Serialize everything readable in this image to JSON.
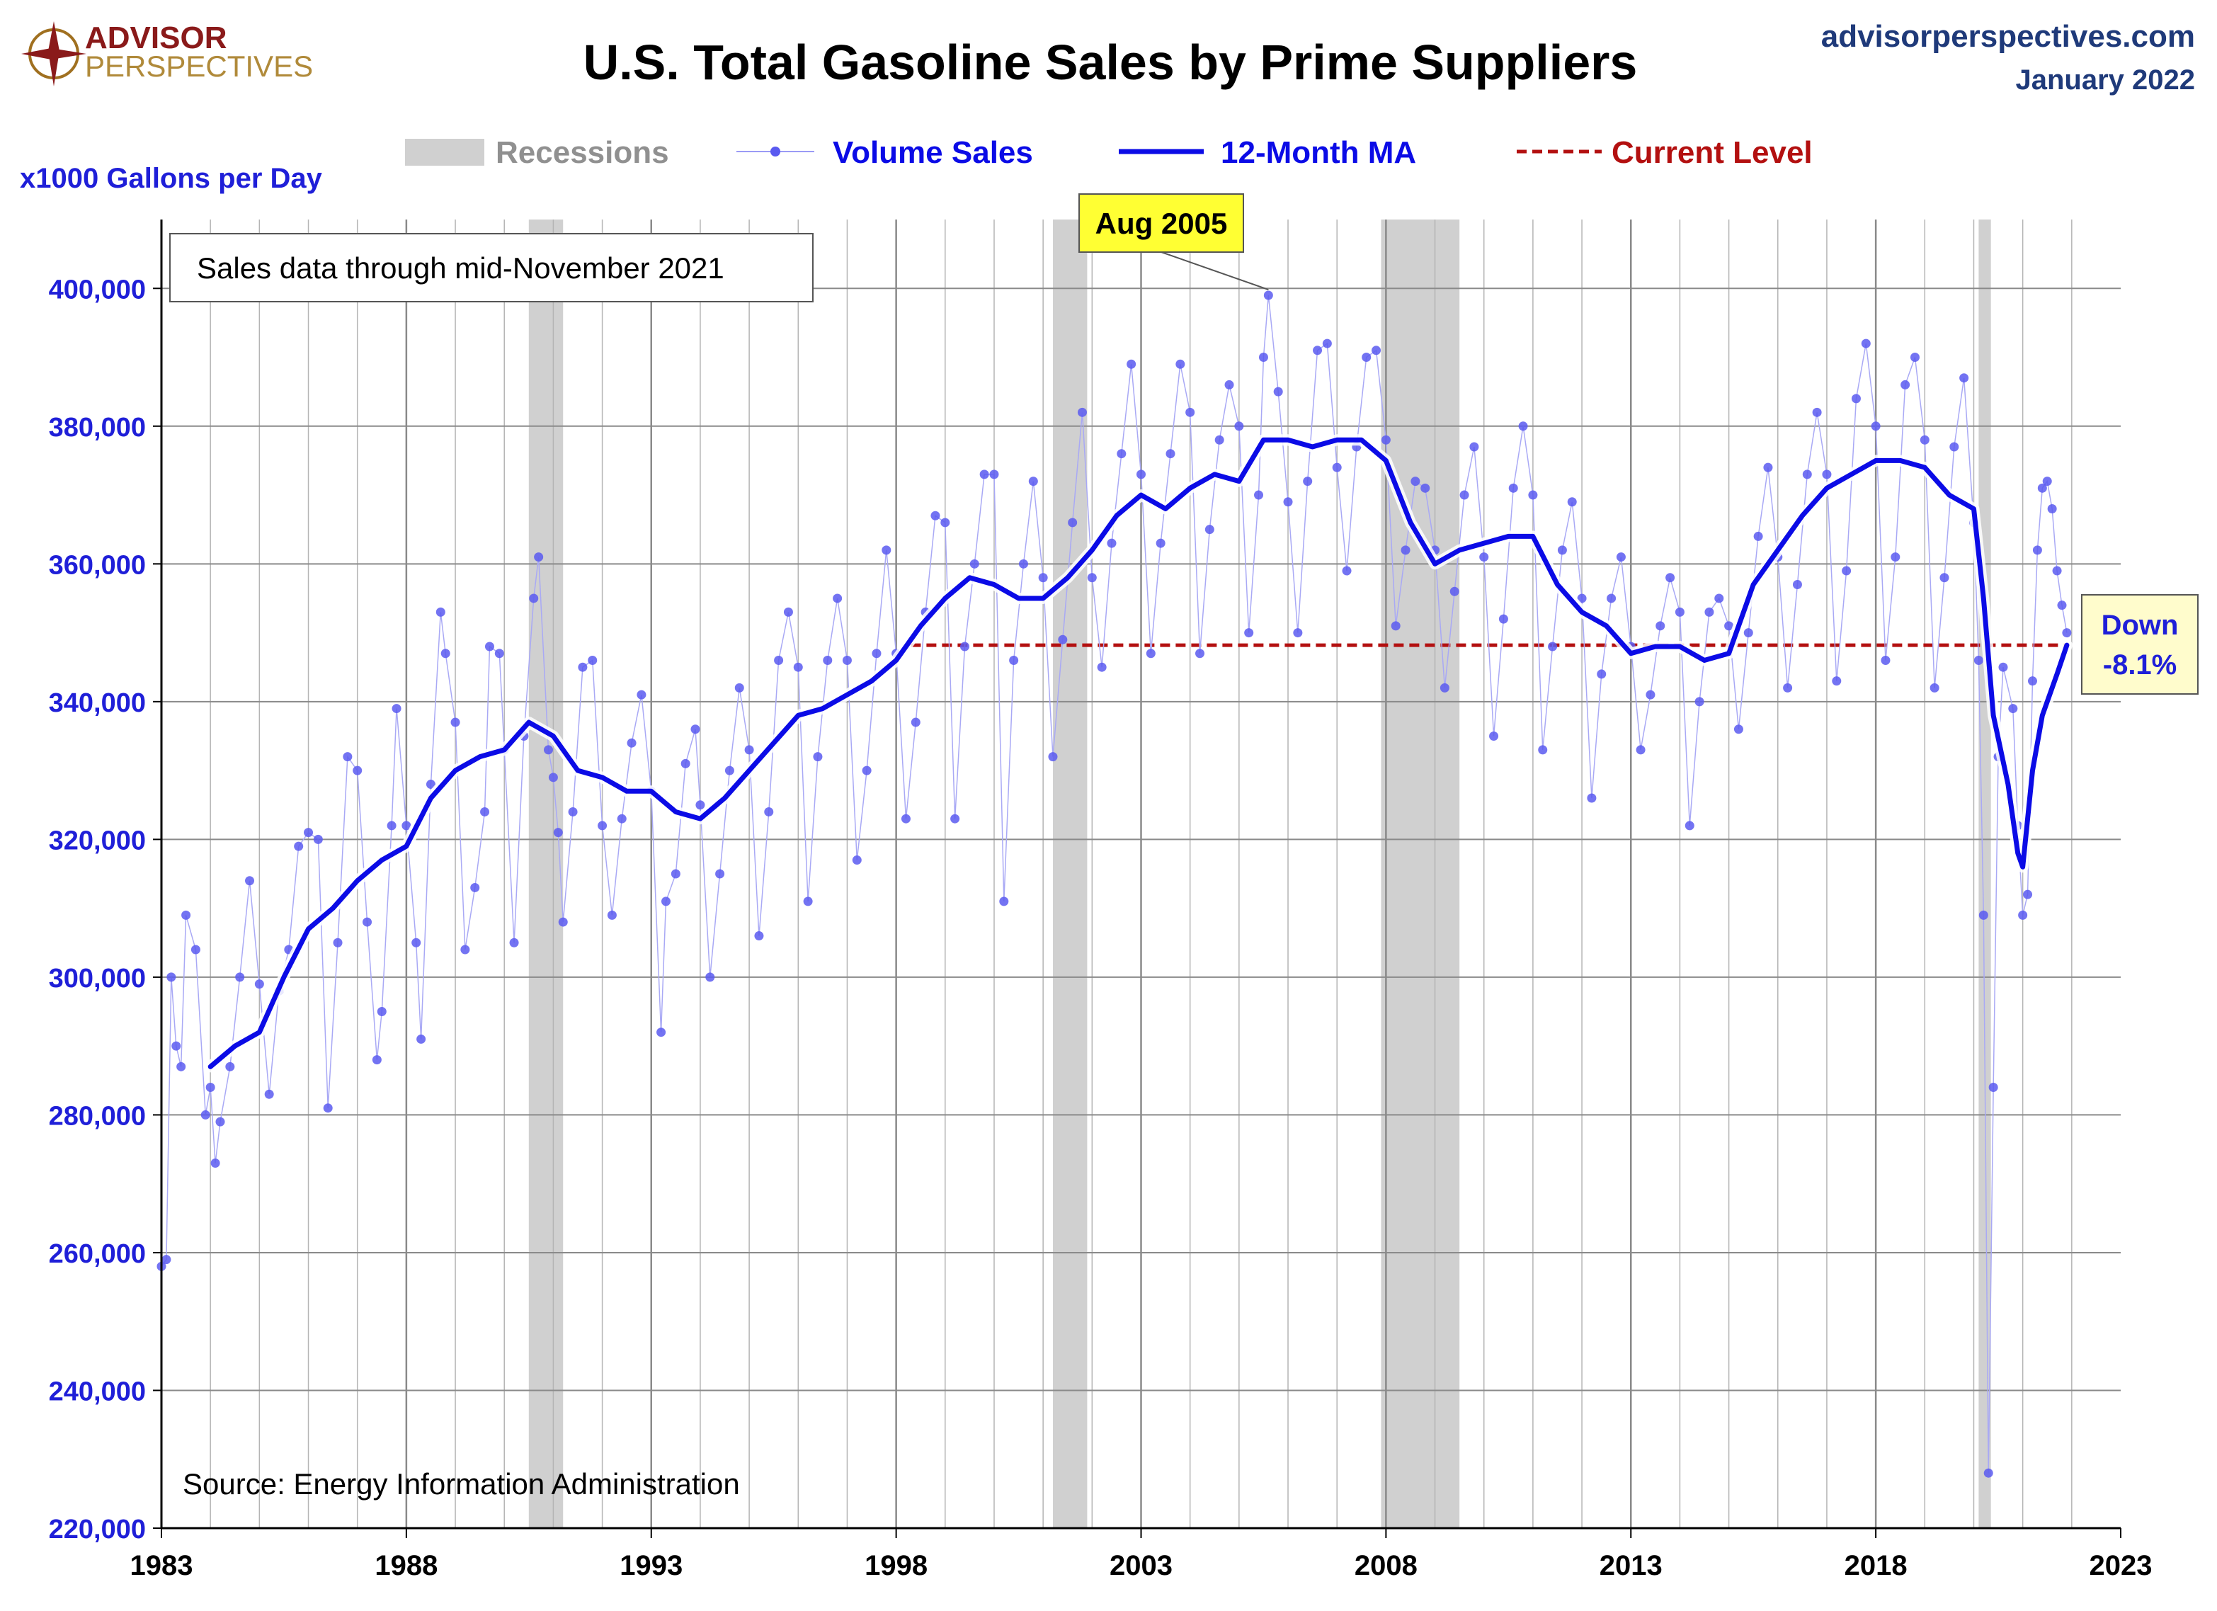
{
  "branding": {
    "logo_line1": "ADVISOR",
    "logo_line2": "PERSPECTIVES",
    "site": "advisorperspectives.com",
    "date": "January 2022"
  },
  "legend": {
    "recessions": "Recessions",
    "volume": "Volume Sales",
    "ma": "12-Month MA",
    "current": "Current Level"
  },
  "annotations": {
    "sales_note": "Sales data through mid-November 2021",
    "source": "Source: Energy Information Administration",
    "peak_label": "Aug 2005",
    "down_line1": "Down",
    "down_line2": "-8.1%"
  },
  "colors": {
    "volume": "#5a5af0",
    "ma": "#0b0be6",
    "current": "#b31010",
    "recession": "#d0d0d0",
    "peak_box": "#ffff33",
    "down_box": "#fffccc",
    "tick": "#1f1fd8"
  },
  "chart_data": {
    "type": "line",
    "title": "U.S. Total Gasoline Sales by Prime Suppliers",
    "ylabel": "x1000 Gallons per Day",
    "xlim": [
      1983,
      2023
    ],
    "ylim": [
      220000,
      410000
    ],
    "x_ticks": [
      1983,
      1988,
      1993,
      1998,
      2003,
      2008,
      2013,
      2018,
      2023
    ],
    "y_ticks": [
      220000,
      240000,
      260000,
      280000,
      300000,
      320000,
      340000,
      360000,
      380000,
      400000
    ],
    "y_tick_labels": [
      "220,000",
      "240,000",
      "260,000",
      "280,000",
      "300,000",
      "320,000",
      "340,000",
      "360,000",
      "380,000",
      "400,000"
    ],
    "x_tick_labels": [
      "1983",
      "1988",
      "1993",
      "1998",
      "2003",
      "2008",
      "2013",
      "2018",
      "2023"
    ],
    "grid": "on, vertical line each year",
    "recessions": [
      [
        1990.5,
        1991.2
      ],
      [
        2001.2,
        2001.9
      ],
      [
        2007.9,
        2009.5
      ],
      [
        2020.1,
        2020.35
      ]
    ],
    "current_level": {
      "value": 348200,
      "x_start": 1998.3,
      "x_end": 2021.9
    },
    "peak": {
      "x": 2005.6,
      "y": 399200
    },
    "ma_anchor_points": [
      [
        1984.0,
        287000
      ],
      [
        1984.5,
        290000
      ],
      [
        1985.0,
        292000
      ],
      [
        1985.5,
        300000
      ],
      [
        1986.0,
        307000
      ],
      [
        1986.5,
        310000
      ],
      [
        1987.0,
        314000
      ],
      [
        1987.5,
        317000
      ],
      [
        1988.0,
        319000
      ],
      [
        1988.5,
        326000
      ],
      [
        1989.0,
        330000
      ],
      [
        1989.5,
        332000
      ],
      [
        1990.0,
        333000
      ],
      [
        1990.5,
        337000
      ],
      [
        1991.0,
        335000
      ],
      [
        1991.5,
        330000
      ],
      [
        1992.0,
        329000
      ],
      [
        1992.5,
        327000
      ],
      [
        1993.0,
        327000
      ],
      [
        1993.5,
        324000
      ],
      [
        1994.0,
        323000
      ],
      [
        1994.5,
        326000
      ],
      [
        1995.0,
        330000
      ],
      [
        1995.5,
        334000
      ],
      [
        1996.0,
        338000
      ],
      [
        1996.5,
        339000
      ],
      [
        1997.0,
        341000
      ],
      [
        1997.5,
        343000
      ],
      [
        1998.0,
        346000
      ],
      [
        1998.5,
        351000
      ],
      [
        1999.0,
        355000
      ],
      [
        1999.5,
        358000
      ],
      [
        2000.0,
        357000
      ],
      [
        2000.5,
        355000
      ],
      [
        2001.0,
        355000
      ],
      [
        2001.5,
        358000
      ],
      [
        2002.0,
        362000
      ],
      [
        2002.5,
        367000
      ],
      [
        2003.0,
        370000
      ],
      [
        2003.5,
        368000
      ],
      [
        2004.0,
        371000
      ],
      [
        2004.5,
        373000
      ],
      [
        2005.0,
        372000
      ],
      [
        2005.5,
        378000
      ],
      [
        2006.0,
        378000
      ],
      [
        2006.5,
        377000
      ],
      [
        2007.0,
        378000
      ],
      [
        2007.5,
        378000
      ],
      [
        2008.0,
        375000
      ],
      [
        2008.5,
        366000
      ],
      [
        2009.0,
        360000
      ],
      [
        2009.5,
        362000
      ],
      [
        2010.0,
        363000
      ],
      [
        2010.5,
        364000
      ],
      [
        2011.0,
        364000
      ],
      [
        2011.5,
        357000
      ],
      [
        2012.0,
        353000
      ],
      [
        2012.5,
        351000
      ],
      [
        2013.0,
        347000
      ],
      [
        2013.5,
        348000
      ],
      [
        2014.0,
        348000
      ],
      [
        2014.5,
        346000
      ],
      [
        2015.0,
        347000
      ],
      [
        2015.5,
        357000
      ],
      [
        2016.0,
        362000
      ],
      [
        2016.5,
        367000
      ],
      [
        2017.0,
        371000
      ],
      [
        2017.5,
        373000
      ],
      [
        2018.0,
        375000
      ],
      [
        2018.5,
        375000
      ],
      [
        2019.0,
        374000
      ],
      [
        2019.5,
        370000
      ],
      [
        2020.0,
        368000
      ],
      [
        2020.2,
        355000
      ],
      [
        2020.4,
        338000
      ],
      [
        2020.7,
        328000
      ],
      [
        2020.9,
        318000
      ],
      [
        2021.0,
        316000
      ],
      [
        2021.2,
        330000
      ],
      [
        2021.4,
        338000
      ],
      [
        2021.7,
        344000
      ],
      [
        2021.9,
        348200
      ]
    ],
    "volume_anchor_points": [
      [
        1983.0,
        258000
      ],
      [
        1983.1,
        259000
      ],
      [
        1983.2,
        300000
      ],
      [
        1983.3,
        290000
      ],
      [
        1983.4,
        287000
      ],
      [
        1983.5,
        309000
      ],
      [
        1983.7,
        304000
      ],
      [
        1983.9,
        280000
      ],
      [
        1984.0,
        284000
      ],
      [
        1984.1,
        273000
      ],
      [
        1984.2,
        279000
      ],
      [
        1984.4,
        287000
      ],
      [
        1984.6,
        300000
      ],
      [
        1984.8,
        314000
      ],
      [
        1985.0,
        299000
      ],
      [
        1985.2,
        283000
      ],
      [
        1985.4,
        298000
      ],
      [
        1985.6,
        304000
      ],
      [
        1985.8,
        319000
      ],
      [
        1986.0,
        321000
      ],
      [
        1986.2,
        320000
      ],
      [
        1986.4,
        281000
      ],
      [
        1986.6,
        305000
      ],
      [
        1986.8,
        332000
      ],
      [
        1987.0,
        330000
      ],
      [
        1987.2,
        308000
      ],
      [
        1987.4,
        288000
      ],
      [
        1987.5,
        295000
      ],
      [
        1987.7,
        322000
      ],
      [
        1987.8,
        339000
      ],
      [
        1988.0,
        322000
      ],
      [
        1988.2,
        305000
      ],
      [
        1988.3,
        291000
      ],
      [
        1988.5,
        328000
      ],
      [
        1988.7,
        353000
      ],
      [
        1988.8,
        347000
      ],
      [
        1989.0,
        337000
      ],
      [
        1989.2,
        304000
      ],
      [
        1989.4,
        313000
      ],
      [
        1989.6,
        324000
      ],
      [
        1989.7,
        348000
      ],
      [
        1989.9,
        347000
      ],
      [
        1990.0,
        333000
      ],
      [
        1990.2,
        305000
      ],
      [
        1990.4,
        335000
      ],
      [
        1990.6,
        355000
      ],
      [
        1990.7,
        361000
      ],
      [
        1990.9,
        333000
      ],
      [
        1991.0,
        329000
      ],
      [
        1991.1,
        321000
      ],
      [
        1991.2,
        308000
      ],
      [
        1991.4,
        324000
      ],
      [
        1991.6,
        345000
      ],
      [
        1991.8,
        346000
      ],
      [
        1992.0,
        322000
      ],
      [
        1992.2,
        309000
      ],
      [
        1992.4,
        323000
      ],
      [
        1992.6,
        334000
      ],
      [
        1992.8,
        341000
      ],
      [
        1993.0,
        327000
      ],
      [
        1993.2,
        292000
      ],
      [
        1993.3,
        311000
      ],
      [
        1993.5,
        315000
      ],
      [
        1993.7,
        331000
      ],
      [
        1993.9,
        336000
      ],
      [
        1994.0,
        325000
      ],
      [
        1994.2,
        300000
      ],
      [
        1994.4,
        315000
      ],
      [
        1994.6,
        330000
      ],
      [
        1994.8,
        342000
      ],
      [
        1995.0,
        333000
      ],
      [
        1995.2,
        306000
      ],
      [
        1995.4,
        324000
      ],
      [
        1995.6,
        346000
      ],
      [
        1995.8,
        353000
      ],
      [
        1996.0,
        345000
      ],
      [
        1996.2,
        311000
      ],
      [
        1996.4,
        332000
      ],
      [
        1996.6,
        346000
      ],
      [
        1996.8,
        355000
      ],
      [
        1997.0,
        346000
      ],
      [
        1997.2,
        317000
      ],
      [
        1997.4,
        330000
      ],
      [
        1997.6,
        347000
      ],
      [
        1997.8,
        362000
      ],
      [
        1998.0,
        347000
      ],
      [
        1998.2,
        323000
      ],
      [
        1998.4,
        337000
      ],
      [
        1998.6,
        353000
      ],
      [
        1998.8,
        367000
      ],
      [
        1999.0,
        366000
      ],
      [
        1999.2,
        323000
      ],
      [
        1999.4,
        348000
      ],
      [
        1999.6,
        360000
      ],
      [
        1999.8,
        373000
      ],
      [
        2000.0,
        373000
      ],
      [
        2000.2,
        311000
      ],
      [
        2000.4,
        346000
      ],
      [
        2000.6,
        360000
      ],
      [
        2000.8,
        372000
      ],
      [
        2001.0,
        358000
      ],
      [
        2001.2,
        332000
      ],
      [
        2001.4,
        349000
      ],
      [
        2001.6,
        366000
      ],
      [
        2001.8,
        382000
      ],
      [
        2002.0,
        358000
      ],
      [
        2002.2,
        345000
      ],
      [
        2002.4,
        363000
      ],
      [
        2002.6,
        376000
      ],
      [
        2002.8,
        389000
      ],
      [
        2003.0,
        373000
      ],
      [
        2003.2,
        347000
      ],
      [
        2003.4,
        363000
      ],
      [
        2003.6,
        376000
      ],
      [
        2003.8,
        389000
      ],
      [
        2004.0,
        382000
      ],
      [
        2004.2,
        347000
      ],
      [
        2004.4,
        365000
      ],
      [
        2004.6,
        378000
      ],
      [
        2004.8,
        386000
      ],
      [
        2005.0,
        380000
      ],
      [
        2005.2,
        350000
      ],
      [
        2005.4,
        370000
      ],
      [
        2005.5,
        390000
      ],
      [
        2005.6,
        399000
      ],
      [
        2005.8,
        385000
      ],
      [
        2006.0,
        369000
      ],
      [
        2006.2,
        350000
      ],
      [
        2006.4,
        372000
      ],
      [
        2006.6,
        391000
      ],
      [
        2006.8,
        392000
      ],
      [
        2007.0,
        374000
      ],
      [
        2007.2,
        359000
      ],
      [
        2007.4,
        377000
      ],
      [
        2007.6,
        390000
      ],
      [
        2007.8,
        391000
      ],
      [
        2008.0,
        378000
      ],
      [
        2008.2,
        351000
      ],
      [
        2008.4,
        362000
      ],
      [
        2008.6,
        372000
      ],
      [
        2008.8,
        371000
      ],
      [
        2009.0,
        362000
      ],
      [
        2009.2,
        342000
      ],
      [
        2009.4,
        356000
      ],
      [
        2009.6,
        370000
      ],
      [
        2009.8,
        377000
      ],
      [
        2010.0,
        361000
      ],
      [
        2010.2,
        335000
      ],
      [
        2010.4,
        352000
      ],
      [
        2010.6,
        371000
      ],
      [
        2010.8,
        380000
      ],
      [
        2011.0,
        370000
      ],
      [
        2011.2,
        333000
      ],
      [
        2011.4,
        348000
      ],
      [
        2011.6,
        362000
      ],
      [
        2011.8,
        369000
      ],
      [
        2012.0,
        355000
      ],
      [
        2012.2,
        326000
      ],
      [
        2012.4,
        344000
      ],
      [
        2012.6,
        355000
      ],
      [
        2012.8,
        361000
      ],
      [
        2013.0,
        348000
      ],
      [
        2013.2,
        333000
      ],
      [
        2013.4,
        341000
      ],
      [
        2013.6,
        351000
      ],
      [
        2013.8,
        358000
      ],
      [
        2014.0,
        353000
      ],
      [
        2014.2,
        322000
      ],
      [
        2014.4,
        340000
      ],
      [
        2014.6,
        353000
      ],
      [
        2014.8,
        355000
      ],
      [
        2015.0,
        351000
      ],
      [
        2015.2,
        336000
      ],
      [
        2015.4,
        350000
      ],
      [
        2015.6,
        364000
      ],
      [
        2015.8,
        374000
      ],
      [
        2016.0,
        361000
      ],
      [
        2016.2,
        342000
      ],
      [
        2016.4,
        357000
      ],
      [
        2016.6,
        373000
      ],
      [
        2016.8,
        382000
      ],
      [
        2017.0,
        373000
      ],
      [
        2017.2,
        343000
      ],
      [
        2017.4,
        359000
      ],
      [
        2017.6,
        384000
      ],
      [
        2017.8,
        392000
      ],
      [
        2018.0,
        380000
      ],
      [
        2018.2,
        346000
      ],
      [
        2018.4,
        361000
      ],
      [
        2018.6,
        386000
      ],
      [
        2018.8,
        390000
      ],
      [
        2019.0,
        378000
      ],
      [
        2019.2,
        342000
      ],
      [
        2019.4,
        358000
      ],
      [
        2019.6,
        377000
      ],
      [
        2019.8,
        387000
      ],
      [
        2020.0,
        366000
      ],
      [
        2020.1,
        346000
      ],
      [
        2020.2,
        309000
      ],
      [
        2020.3,
        228000
      ],
      [
        2020.4,
        284000
      ],
      [
        2020.5,
        332000
      ],
      [
        2020.6,
        345000
      ],
      [
        2020.8,
        339000
      ],
      [
        2020.9,
        322000
      ],
      [
        2021.0,
        309000
      ],
      [
        2021.1,
        312000
      ],
      [
        2021.2,
        343000
      ],
      [
        2021.3,
        362000
      ],
      [
        2021.4,
        371000
      ],
      [
        2021.5,
        372000
      ],
      [
        2021.6,
        368000
      ],
      [
        2021.7,
        359000
      ],
      [
        2021.8,
        354000
      ],
      [
        2021.9,
        350000
      ]
    ]
  }
}
